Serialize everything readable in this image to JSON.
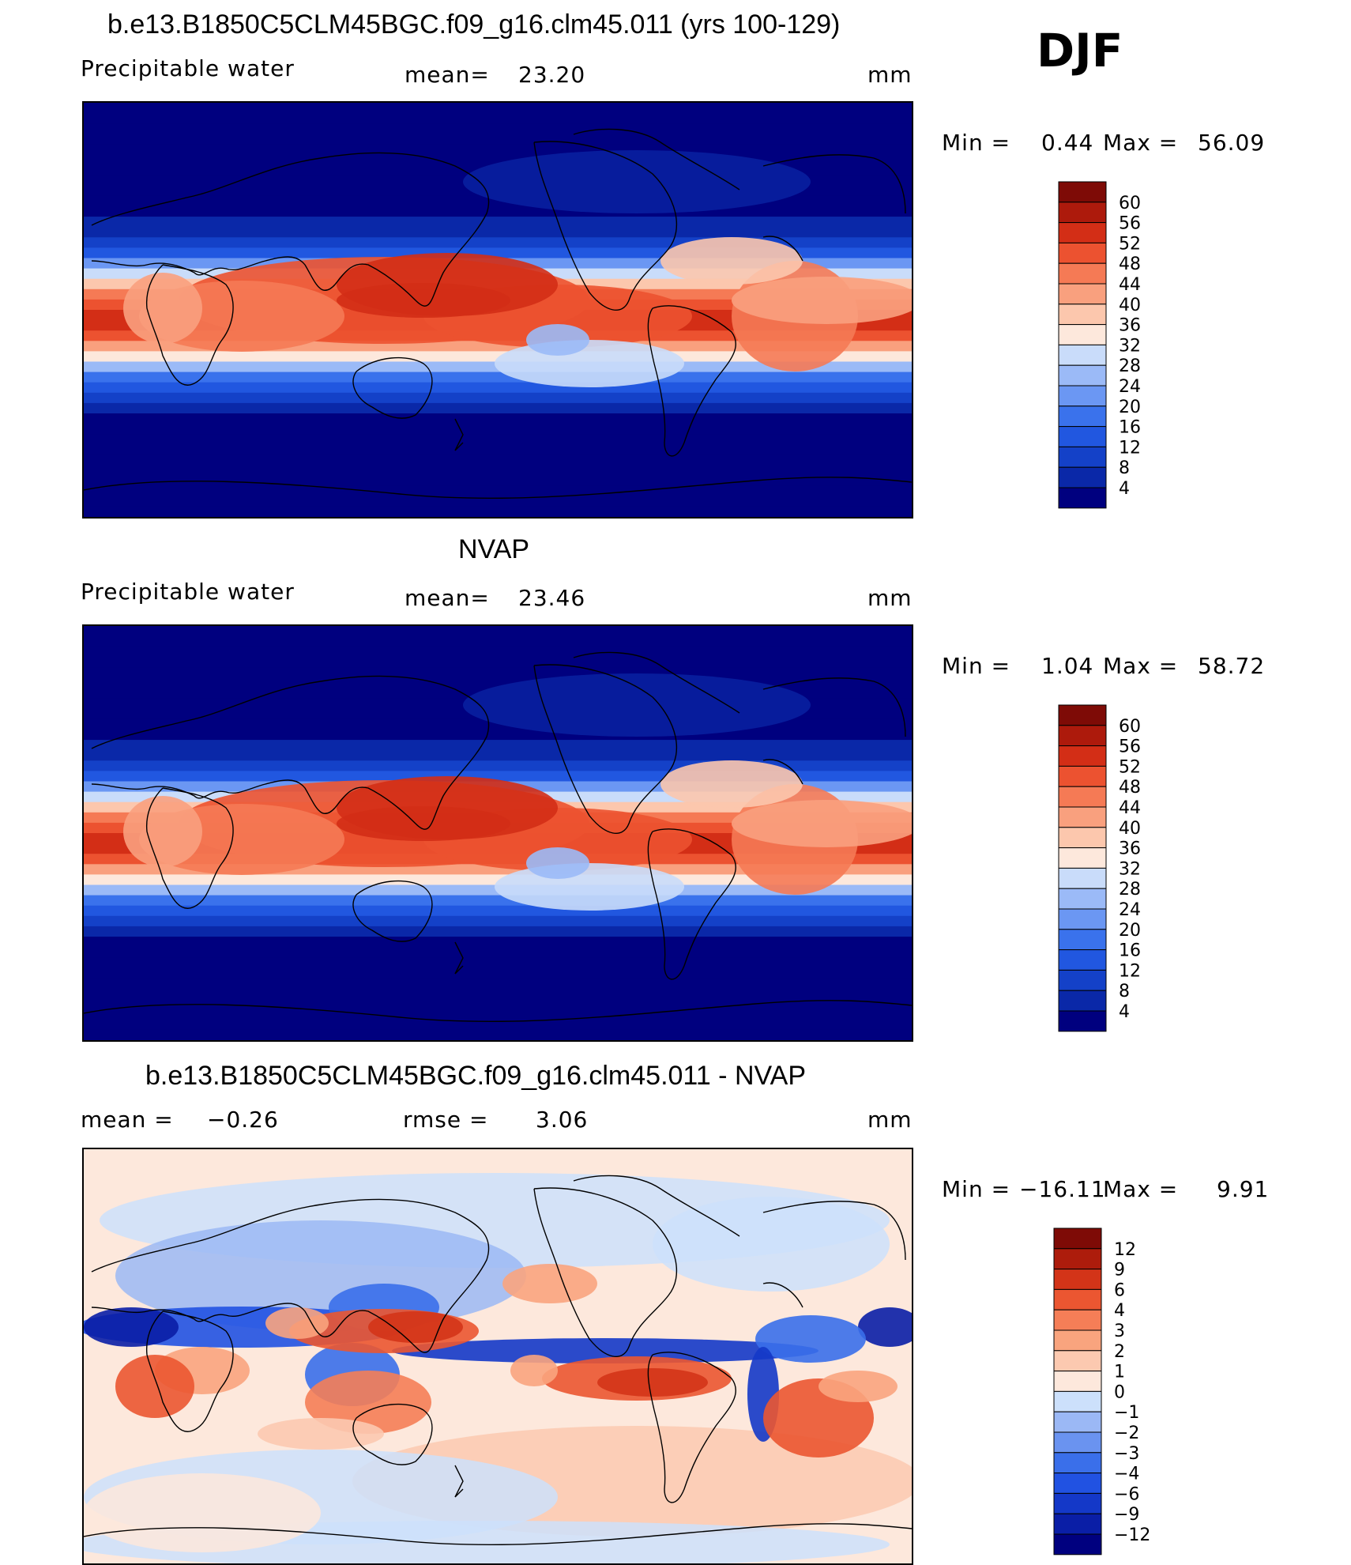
{
  "season": "DJF",
  "panels": [
    {
      "title": "b.e13.B1850C5CLM45BGC.f09_g16.clm45.011 (yrs 100-129)",
      "left_label": "Precipitable  water",
      "center_label": "mean=",
      "center_value": "23.20",
      "units": "mm",
      "min_label": "Min  =",
      "min_value": "0.44",
      "max_label": "Max  =",
      "max_value": "56.09"
    },
    {
      "title": "NVAP",
      "left_label": "Precipitable  water",
      "center_label": "mean=",
      "center_value": "23.46",
      "units": "mm",
      "min_label": "Min  =",
      "min_value": "1.04",
      "max_label": "Max  =",
      "max_value": "58.72"
    },
    {
      "title": "b.e13.B1850C5CLM45BGC.f09_g16.clm45.011 - NVAP",
      "left_label": "mean  =",
      "left_value": "−0.26",
      "center_label": "rmse  =",
      "center_value": "3.06",
      "units": "mm",
      "min_label": "Min  =",
      "min_value": "−16.11",
      "max_label": "Max  =",
      "max_value": "9.91"
    }
  ],
  "chart_data": [
    {
      "type": "heatmap",
      "title": "b.e13.B1850C5CLM45BGC.f09_g16.clm45.011 (yrs 100-129)",
      "variable": "Precipitable water",
      "units": "mm",
      "mean": 23.2,
      "min": 0.44,
      "max": 56.09,
      "colorbar_levels": [
        4,
        8,
        12,
        16,
        20,
        24,
        28,
        32,
        36,
        40,
        44,
        48,
        52,
        56,
        60
      ],
      "colors": [
        "#00007f",
        "#0a28a8",
        "#1441c8",
        "#2157e0",
        "#3a72ec",
        "#6b97f3",
        "#9bbaf7",
        "#c9dcfa",
        "#fde8dc",
        "#fcc7ad",
        "#f9a07e",
        "#f57a55",
        "#ec5230",
        "#d32e16",
        "#ad1a0c",
        "#7e0b06"
      ]
    },
    {
      "type": "heatmap",
      "title": "NVAP",
      "variable": "Precipitable water",
      "units": "mm",
      "mean": 23.46,
      "min": 1.04,
      "max": 58.72,
      "colorbar_levels": [
        4,
        8,
        12,
        16,
        20,
        24,
        28,
        32,
        36,
        40,
        44,
        48,
        52,
        56,
        60
      ],
      "colors": [
        "#00007f",
        "#0a28a8",
        "#1441c8",
        "#2157e0",
        "#3a72ec",
        "#6b97f3",
        "#9bbaf7",
        "#c9dcfa",
        "#fde8dc",
        "#fcc7ad",
        "#f9a07e",
        "#f57a55",
        "#ec5230",
        "#d32e16",
        "#ad1a0c",
        "#7e0b06"
      ]
    },
    {
      "type": "heatmap",
      "title": "b.e13.B1850C5CLM45BGC.f09_g16.clm45.011 - NVAP",
      "units": "mm",
      "mean": -0.26,
      "rmse": 3.06,
      "min": -16.11,
      "max": 9.91,
      "colorbar_levels": [
        -12,
        -9,
        -6,
        -4,
        -3,
        -2,
        -1,
        0,
        1,
        2,
        3,
        4,
        6,
        9,
        12
      ],
      "colorbar_tick_labels": [
        "−12",
        "−9",
        "−6",
        "−4",
        "−3",
        "−2",
        "−1",
        "0",
        "1",
        "2",
        "3",
        "4",
        "6",
        "9",
        "12"
      ],
      "colors": [
        "#00007f",
        "#0a1ea6",
        "#1438c8",
        "#2152e2",
        "#3a6fea",
        "#6a93f0",
        "#9bb8f5",
        "#cce0fb",
        "#fde8dc",
        "#fcc9b0",
        "#f9a47e",
        "#f57e57",
        "#eb5631",
        "#d33418",
        "#ad1c0c",
        "#7e0b06"
      ]
    }
  ]
}
